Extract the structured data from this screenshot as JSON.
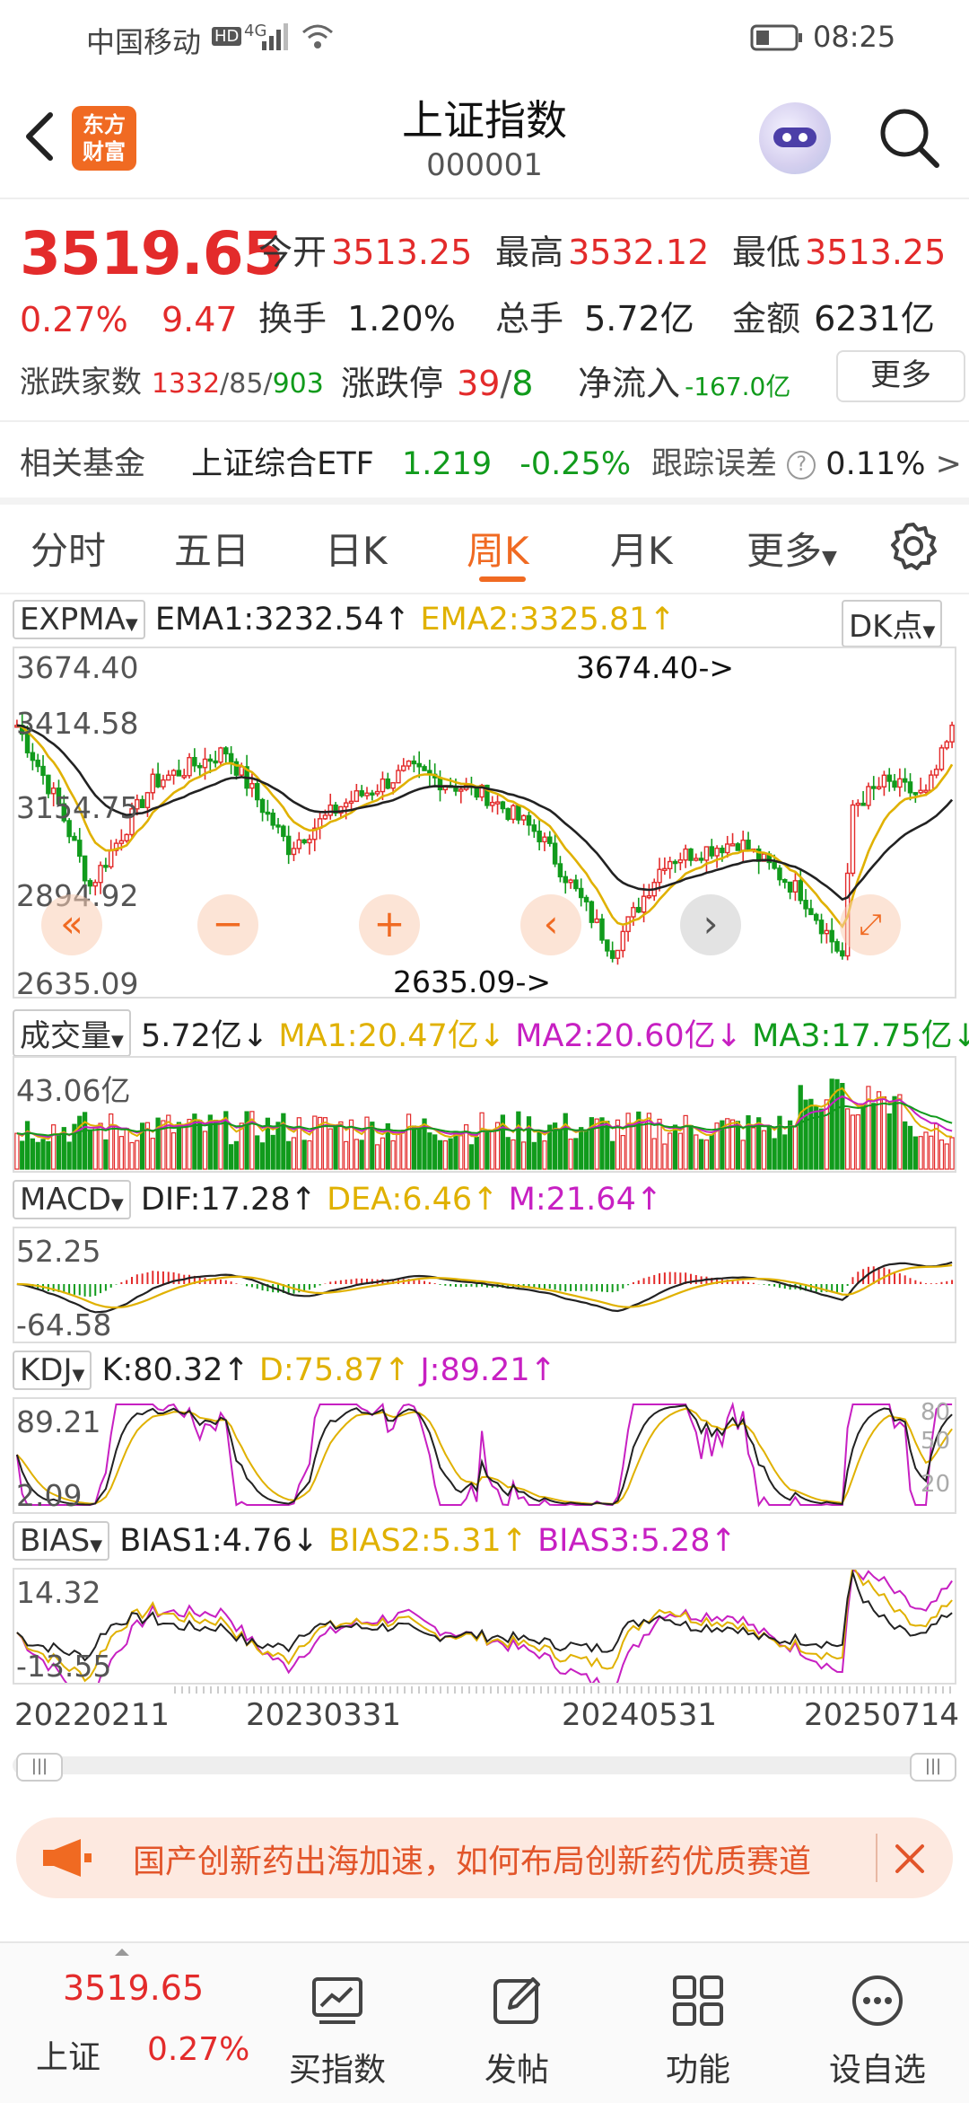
{
  "status_bar": {
    "carrier": "中国移动",
    "network": "4G",
    "time": "08:25"
  },
  "header": {
    "logo_text_1": "东方",
    "logo_text_2": "财富",
    "title": "上证指数",
    "code": "000001"
  },
  "quote": {
    "price": "3519.65",
    "change_pct": "0.27%",
    "change": "9.47",
    "open_label": "今开",
    "open": "3513.25",
    "high_label": "最高",
    "high": "3532.12",
    "low_label": "最低",
    "low": "3513.25",
    "turnover_label": "换手",
    "turnover": "1.20%",
    "volume_label": "总手",
    "volume": "5.72亿",
    "amount_label": "金额",
    "amount": "6231亿",
    "breadth_label": "涨跌家数",
    "up_count": "1332",
    "flat_count": "85",
    "down_count": "903",
    "limit_label": "涨跌停",
    "limit_up": "39",
    "limit_down": "8",
    "netflow_label": "净流入",
    "netflow": "-167.0亿",
    "more_button": "更多"
  },
  "fund": {
    "label": "相关基金",
    "name": "上证综合ETF",
    "price": "1.219",
    "change": "-0.25%",
    "tracking_label": "跟踪误差",
    "tracking_value": "0.11%"
  },
  "tabs": [
    "分时",
    "五日",
    "日K",
    "周K",
    "月K",
    "更多"
  ],
  "active_tab": "周K",
  "main_chart": {
    "indicator": "EXPMA",
    "ema1": "EMA1:3232.54",
    "ema2": "EMA2:3325.81",
    "dk_button": "DK点",
    "y_labels": [
      "3674.40",
      "3414.58",
      "3154.75",
      "2894.92",
      "2635.09"
    ],
    "high_marker": "3674.40->",
    "low_marker": "2635.09->"
  },
  "volume_chart": {
    "indicator": "成交量",
    "value": "5.72亿",
    "ma1": "MA1:20.47亿",
    "ma2": "MA2:20.60亿",
    "ma3": "MA3:17.75亿",
    "y_label": "43.06亿"
  },
  "macd_chart": {
    "indicator": "MACD",
    "dif": "DIF:17.28",
    "dea": "DEA:6.46",
    "m": "M:21.64",
    "y_top": "52.25",
    "y_bottom": "-64.58"
  },
  "kdj_chart": {
    "indicator": "KDJ",
    "k": "K:80.32",
    "d": "D:75.87",
    "j": "J:89.21",
    "y_top": "89.21",
    "y_bottom": "2.09",
    "r80": "80",
    "r50": "50",
    "r20": "20"
  },
  "bias_chart": {
    "indicator": "BIAS",
    "bias1": "BIAS1:4.76",
    "bias2": "BIAS2:5.31",
    "bias3": "BIAS3:5.28",
    "y_top": "14.32",
    "y_bottom": "-13.55"
  },
  "date_axis": [
    "20220211",
    "20230331",
    "20240531",
    "20250714"
  ],
  "banner": {
    "text": "国产创新药出海加速，如何布局创新药优质赛道"
  },
  "bottom_bar": {
    "index_price": "3519.65",
    "index_name": "上证",
    "index_change": "0.27%",
    "items": [
      "买指数",
      "发帖",
      "功能",
      "设自选"
    ]
  },
  "colors": {
    "accent": "#f06a22",
    "up": "#e32b2b",
    "down": "#119b1c",
    "ema2": "#e0b100",
    "magenta": "#c720c2"
  }
}
